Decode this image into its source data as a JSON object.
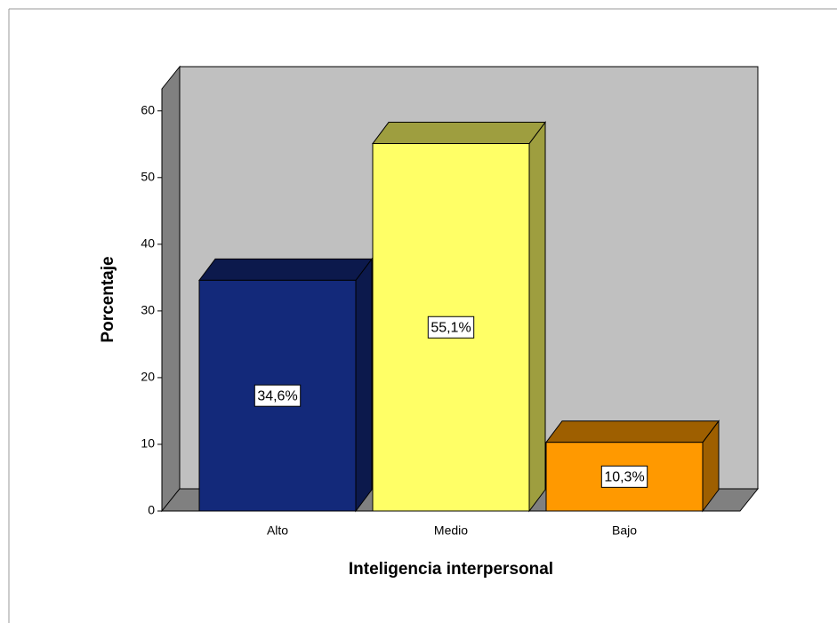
{
  "chart_data": {
    "type": "bar3d",
    "xlabel": "Inteligencia interpersonal",
    "ylabel": "Porcentaje",
    "categories": [
      "Alto",
      "Medio",
      "Bajo"
    ],
    "values": [
      34.6,
      55.1,
      10.3
    ],
    "value_labels": [
      "34,6%",
      "55,1%",
      "10,3%"
    ],
    "colors": [
      "#13297a",
      "#ffff66",
      "#ff9900"
    ],
    "ylim": [
      0,
      63.3
    ],
    "yticks": [
      0,
      10,
      20,
      30,
      40,
      50,
      60
    ],
    "grid": false
  }
}
